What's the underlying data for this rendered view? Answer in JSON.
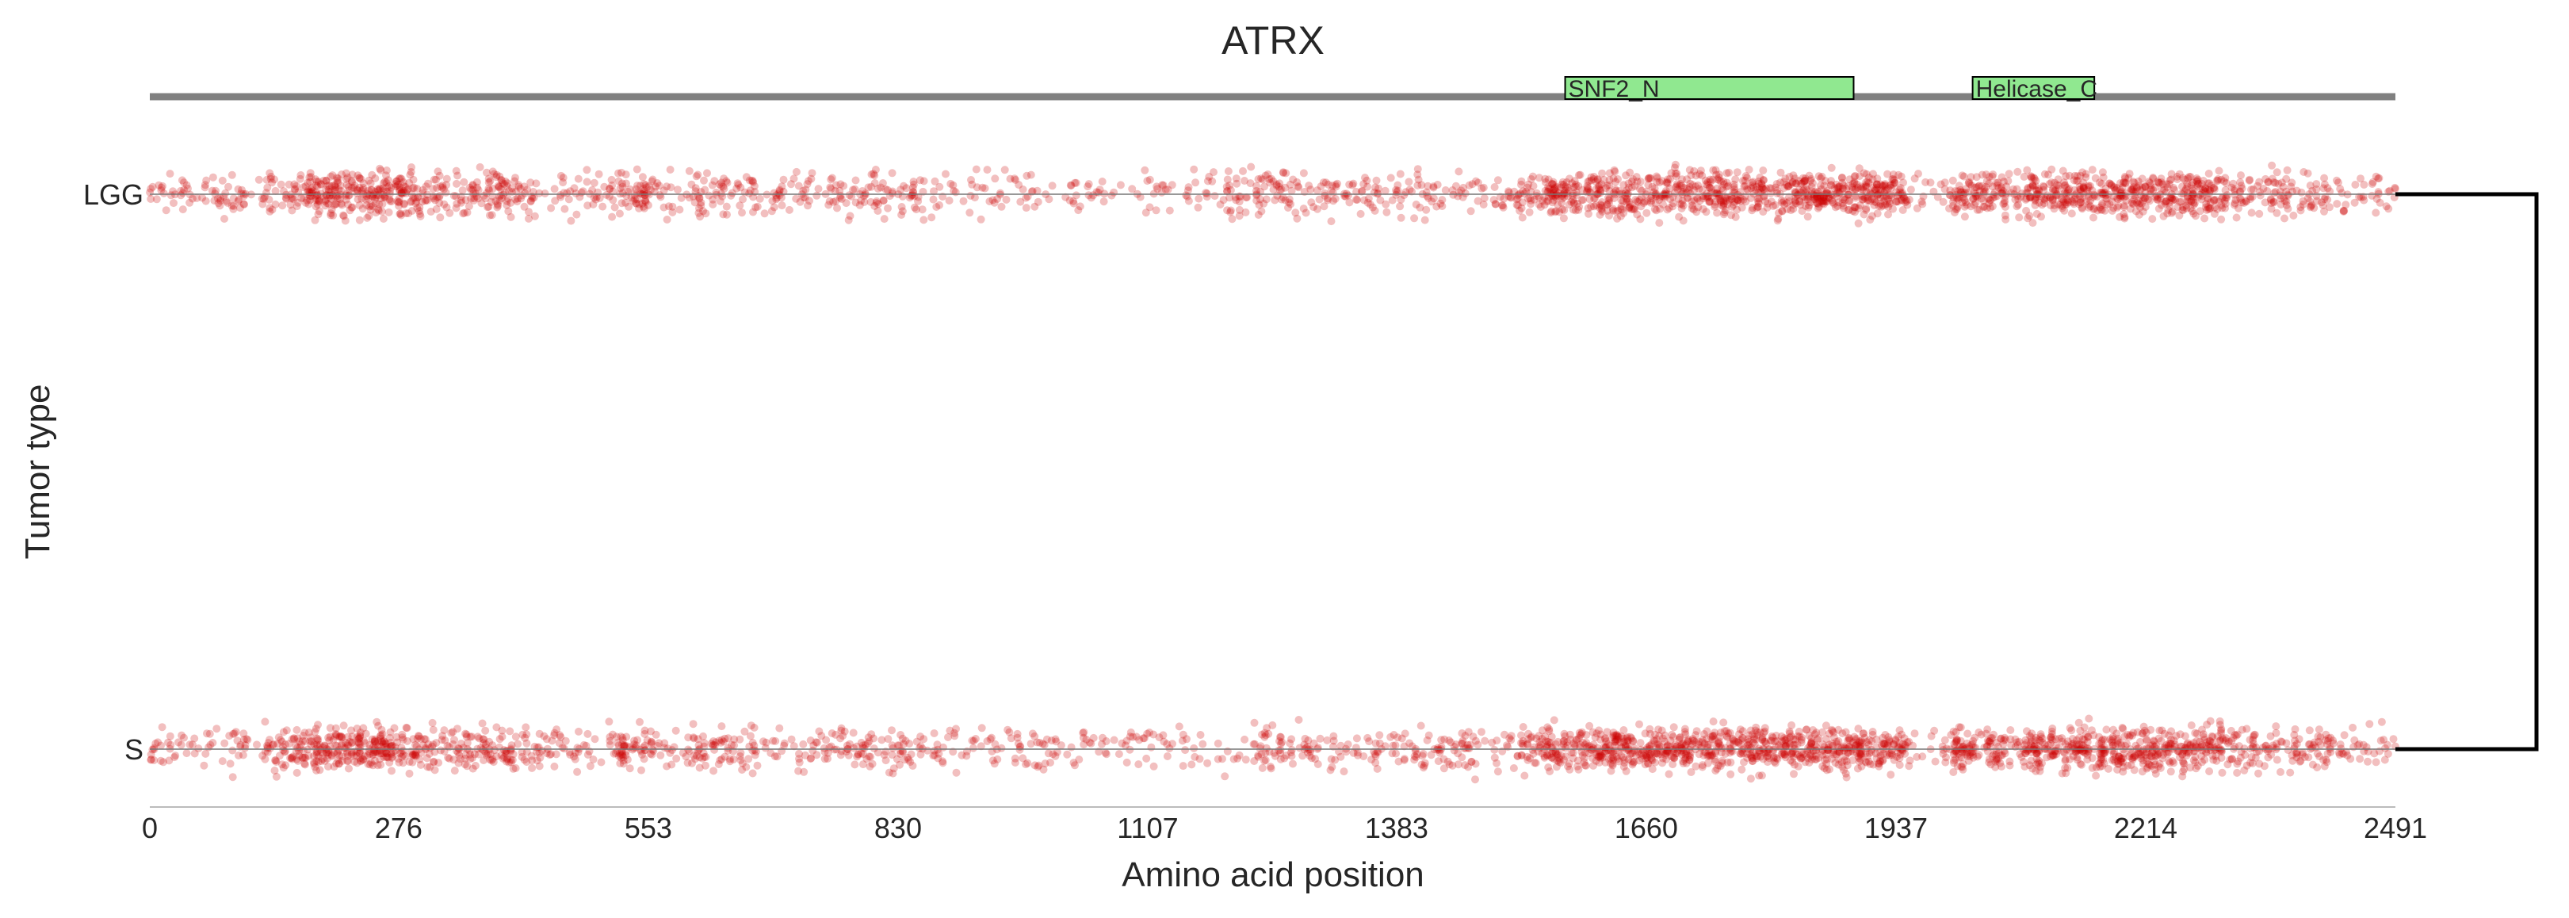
{
  "chart_data": {
    "type": "scatter",
    "title": "ATRX",
    "xlabel": "Amino acid position",
    "ylabel": "Tumor type",
    "xlim": [
      0,
      2491
    ],
    "x_ticks": [
      "0",
      "276",
      "553",
      "830",
      "1107",
      "1383",
      "1660",
      "1937",
      "2214",
      "2491"
    ],
    "categories": [
      "LGG",
      "S"
    ],
    "protein_length": 2491,
    "domains": [
      {
        "name": "SNF2_N",
        "start": 1570,
        "end": 1890,
        "color": "#90e890"
      },
      {
        "name": "Helicase_C",
        "start": 2022,
        "end": 2157,
        "color": "#90e890"
      }
    ],
    "point_color": "#cc0000",
    "point_opacity": 0.25,
    "density_profile": [
      {
        "start": 0,
        "end": 60,
        "density": 0.25
      },
      {
        "start": 60,
        "end": 160,
        "density": 0.35
      },
      {
        "start": 160,
        "end": 180,
        "density": 0.8
      },
      {
        "start": 180,
        "end": 300,
        "density": 1.0
      },
      {
        "start": 300,
        "end": 340,
        "density": 0.5
      },
      {
        "start": 340,
        "end": 420,
        "density": 0.6
      },
      {
        "start": 420,
        "end": 520,
        "density": 0.3
      },
      {
        "start": 520,
        "end": 560,
        "density": 0.7
      },
      {
        "start": 560,
        "end": 600,
        "density": 0.25
      },
      {
        "start": 600,
        "end": 640,
        "density": 0.5
      },
      {
        "start": 640,
        "end": 760,
        "density": 0.3
      },
      {
        "start": 760,
        "end": 860,
        "density": 0.4
      },
      {
        "start": 860,
        "end": 1220,
        "density": 0.2
      },
      {
        "start": 1220,
        "end": 1300,
        "density": 0.4
      },
      {
        "start": 1300,
        "end": 1500,
        "density": 0.3
      },
      {
        "start": 1500,
        "end": 1550,
        "density": 0.5
      },
      {
        "start": 1550,
        "end": 1950,
        "density": 1.0
      },
      {
        "start": 1950,
        "end": 2000,
        "density": 0.2
      },
      {
        "start": 2000,
        "end": 2060,
        "density": 0.9
      },
      {
        "start": 2060,
        "end": 2080,
        "density": 0.4
      },
      {
        "start": 2080,
        "end": 2300,
        "density": 1.0
      },
      {
        "start": 2300,
        "end": 2420,
        "density": 0.5
      },
      {
        "start": 2420,
        "end": 2491,
        "density": 0.25
      }
    ],
    "hierarchy": {
      "links": [
        [
          "LGG",
          "S"
        ]
      ]
    },
    "grid": false,
    "legend": "none"
  }
}
